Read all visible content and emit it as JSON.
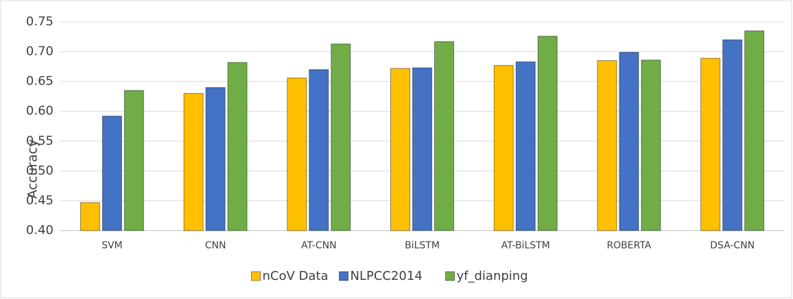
{
  "chart_data": {
    "type": "bar",
    "y_label": "Accuracy",
    "categories": [
      "SVM",
      "CNN",
      "AT-CNN",
      "BiLSTM",
      "AT-BiLSTM",
      "ROBERTA",
      "DSA-CNN"
    ],
    "series": [
      {
        "name": "nCoV Data",
        "color": "#ffc000",
        "values": [
          0.447,
          0.63,
          0.656,
          0.672,
          0.677,
          0.685,
          0.689
        ]
      },
      {
        "name": "NLPCC2014",
        "color": "#4472c4",
        "values": [
          0.592,
          0.64,
          0.67,
          0.673,
          0.683,
          0.699,
          0.72
        ]
      },
      {
        "name": "yf_dianping",
        "color": "#70ad47",
        "values": [
          0.635,
          0.682,
          0.713,
          0.717,
          0.726,
          0.686,
          0.735
        ]
      }
    ],
    "ylim": [
      0.4,
      0.75
    ],
    "yticks": [
      {
        "value": 0.4,
        "label": "0.40"
      },
      0.45,
      {
        "value": 0.5,
        "label": "0.50"
      },
      0.55,
      {
        "value": 0.6,
        "label": "0.60"
      },
      0.65,
      {
        "value": 0.7,
        "label": "0.70"
      },
      0.75
    ],
    "grid": true,
    "legend": "bottom"
  }
}
